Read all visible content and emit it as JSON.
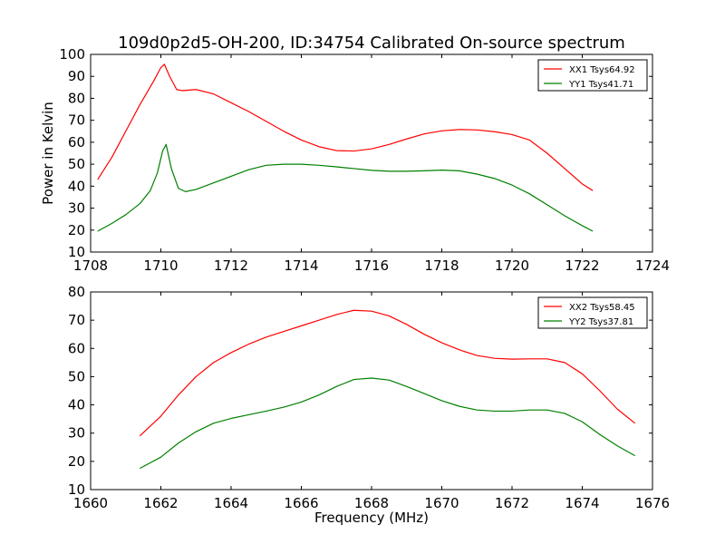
{
  "title": "109d0p2d5-OH-200, ID:34754 Calibrated On-source spectrum",
  "colors": {
    "red": "#ff0000",
    "green": "#008000",
    "axes": "#000000",
    "background": "#ffffff"
  },
  "chart_data": [
    {
      "type": "line",
      "title": "109d0p2d5-OH-200, ID:34754 Calibrated On-source spectrum",
      "xlabel": "",
      "ylabel": "Power in Kelvin",
      "xlim": [
        1708,
        1724
      ],
      "ylim": [
        10,
        100
      ],
      "xticks": [
        1708,
        1710,
        1712,
        1714,
        1716,
        1718,
        1720,
        1722,
        1724
      ],
      "yticks": [
        10,
        20,
        30,
        40,
        50,
        60,
        70,
        80,
        90,
        100
      ],
      "grid": false,
      "legend_position": "top-right",
      "series": [
        {
          "name": "XX1 Tsys64.92",
          "color": "#ff0000",
          "x": [
            1708.2,
            1708.6,
            1709.0,
            1709.4,
            1709.8,
            1710.0,
            1710.1,
            1710.25,
            1710.45,
            1710.6,
            1711.0,
            1711.5,
            1712.0,
            1712.5,
            1713.0,
            1713.5,
            1714.0,
            1714.5,
            1715.0,
            1715.5,
            1716.0,
            1716.5,
            1717.0,
            1717.5,
            1718.0,
            1718.5,
            1719.0,
            1719.5,
            1720.0,
            1720.5,
            1721.0,
            1721.5,
            1722.0,
            1722.3
          ],
          "y": [
            43,
            53,
            65,
            77,
            88,
            94,
            95.5,
            90,
            84,
            83.5,
            84,
            82,
            78,
            74,
            69.5,
            65,
            61,
            58,
            56.2,
            56,
            57,
            59,
            61.5,
            63.8,
            65.2,
            65.8,
            65.6,
            64.8,
            63.5,
            61,
            55,
            48,
            41,
            38
          ]
        },
        {
          "name": "YY1 Tsys41.71",
          "color": "#008000",
          "x": [
            1708.2,
            1708.6,
            1709.0,
            1709.4,
            1709.7,
            1709.9,
            1710.05,
            1710.15,
            1710.3,
            1710.5,
            1710.7,
            1711.0,
            1711.5,
            1712.0,
            1712.5,
            1713.0,
            1713.5,
            1714.0,
            1714.5,
            1715.0,
            1715.5,
            1716.0,
            1716.5,
            1717.0,
            1717.5,
            1718.0,
            1718.5,
            1719.0,
            1719.5,
            1720.0,
            1720.5,
            1721.0,
            1721.5,
            1722.0,
            1722.3
          ],
          "y": [
            19.5,
            23,
            27,
            32,
            38,
            46,
            56,
            59,
            48,
            39,
            37.5,
            38.5,
            41.5,
            44.5,
            47.5,
            49.5,
            50,
            50,
            49.5,
            48.8,
            48,
            47.2,
            46.8,
            46.8,
            47,
            47.3,
            47,
            45.5,
            43.5,
            40.5,
            36.5,
            31.5,
            26.5,
            22,
            19.5
          ]
        }
      ]
    },
    {
      "type": "line",
      "title": "",
      "xlabel": "Frequency (MHz)",
      "ylabel": "",
      "xlim": [
        1660,
        1676
      ],
      "ylim": [
        10,
        80
      ],
      "xticks": [
        1660,
        1662,
        1664,
        1666,
        1668,
        1670,
        1672,
        1674,
        1676
      ],
      "yticks": [
        10,
        20,
        30,
        40,
        50,
        60,
        70,
        80
      ],
      "grid": false,
      "legend_position": "top-right",
      "series": [
        {
          "name": "XX2 Tsys58.45",
          "color": "#ff0000",
          "x": [
            1661.4,
            1662.0,
            1662.5,
            1663.0,
            1663.5,
            1664.0,
            1664.5,
            1665.0,
            1665.5,
            1666.0,
            1666.5,
            1667.0,
            1667.5,
            1668.0,
            1668.5,
            1669.0,
            1669.5,
            1670.0,
            1670.5,
            1671.0,
            1671.5,
            1672.0,
            1672.5,
            1673.0,
            1673.5,
            1674.0,
            1674.5,
            1675.0,
            1675.5
          ],
          "y": [
            29,
            36,
            43.5,
            50,
            55,
            58.5,
            61.5,
            64,
            66,
            68,
            70,
            72,
            73.5,
            73.2,
            71.5,
            68.5,
            65,
            62,
            59.5,
            57.5,
            56.5,
            56.2,
            56.3,
            56.3,
            55,
            51,
            45,
            38.5,
            33.5
          ]
        },
        {
          "name": "YY2 Tsys37.81",
          "color": "#008000",
          "x": [
            1661.4,
            1662.0,
            1662.5,
            1663.0,
            1663.5,
            1664.0,
            1664.5,
            1665.0,
            1665.5,
            1666.0,
            1666.5,
            1667.0,
            1667.5,
            1668.0,
            1668.5,
            1669.0,
            1669.5,
            1670.0,
            1670.5,
            1671.0,
            1671.5,
            1672.0,
            1672.5,
            1673.0,
            1673.5,
            1674.0,
            1674.5,
            1675.0,
            1675.5
          ],
          "y": [
            17.5,
            21.5,
            26.5,
            30.5,
            33.5,
            35.2,
            36.5,
            37.8,
            39.2,
            41,
            43.5,
            46.5,
            49,
            49.5,
            48.8,
            46.5,
            44,
            41.5,
            39.5,
            38.2,
            37.8,
            37.8,
            38.2,
            38.2,
            37,
            34,
            29.5,
            25.5,
            22
          ]
        }
      ]
    }
  ]
}
